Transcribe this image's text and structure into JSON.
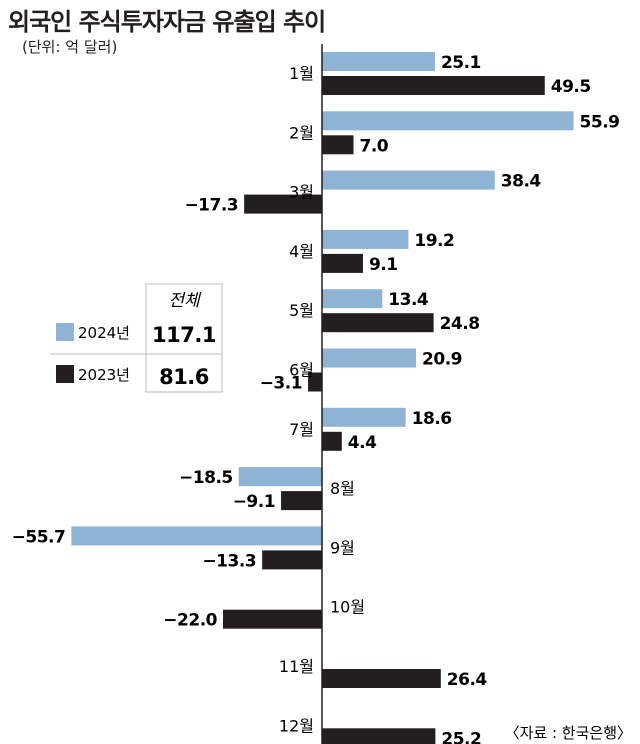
{
  "chart_data": {
    "type": "bar",
    "orientation": "horizontal",
    "title": "외국인 주식투자자금 유출입 추이",
    "unit": "(단위: 억 달러)",
    "categories": [
      "1월",
      "2월",
      "3월",
      "4월",
      "5월",
      "6월",
      "7월",
      "8월",
      "9월",
      "10월",
      "11월",
      "12월"
    ],
    "series": [
      {
        "name": "2024년",
        "color": "#8fb3d5",
        "values": [
          25.1,
          55.9,
          38.4,
          19.2,
          13.4,
          20.9,
          18.6,
          -18.5,
          -55.7,
          null,
          null,
          null
        ]
      },
      {
        "name": "2023년",
        "color": "#231f20",
        "values": [
          49.5,
          7.0,
          -17.3,
          9.1,
          24.8,
          -3.1,
          4.4,
          -9.1,
          -13.3,
          -22.0,
          26.4,
          25.2
        ]
      }
    ],
    "totals": {
      "header": "전체",
      "rows": [
        {
          "label": "2024년",
          "value": "117.1"
        },
        {
          "label": "2023년",
          "value": "81.6"
        }
      ]
    },
    "source": "〈자료 : 한국은행〉"
  }
}
